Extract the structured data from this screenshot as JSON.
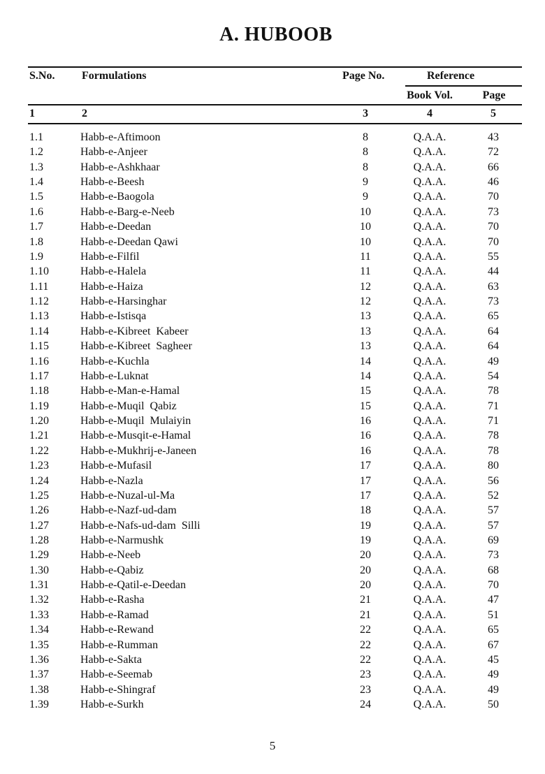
{
  "title": "A.  HUBOOB",
  "header": {
    "sno": "S.No.",
    "formulations": "Formulations",
    "page_no": "Page No.",
    "reference": "Reference",
    "book_vol": "Book Vol.",
    "page": "Page",
    "col_numbers": [
      "1",
      "2",
      "3",
      "4",
      "5"
    ]
  },
  "rows": [
    [
      "1.1",
      "Habb-e-Aftimoon",
      "8",
      "Q.A.A.",
      "43"
    ],
    [
      "1.2",
      "Habb-e-Anjeer",
      "8",
      "Q.A.A.",
      "72"
    ],
    [
      "1.3",
      "Habb-e-Ashkhaar",
      "8",
      "Q.A.A.",
      "66"
    ],
    [
      "1.4",
      "Habb-e-Beesh",
      "9",
      "Q.A.A.",
      "46"
    ],
    [
      "1.5",
      "Habb-e-Baogola",
      "9",
      "Q.A.A.",
      "70"
    ],
    [
      "1.6",
      "Habb-e-Barg-e-Neeb",
      "10",
      "Q.A.A.",
      "73"
    ],
    [
      "1.7",
      "Habb-e-Deedan",
      "10",
      "Q.A.A.",
      "70"
    ],
    [
      "1.8",
      "Habb-e-Deedan Qawi",
      "10",
      "Q.A.A.",
      "70"
    ],
    [
      "1.9",
      "Habb-e-Filfil",
      "11",
      "Q.A.A.",
      "55"
    ],
    [
      "1.10",
      "Habb-e-Halela",
      "11",
      "Q.A.A.",
      "44"
    ],
    [
      "1.11",
      "Habb-e-Haiza",
      "12",
      "Q.A.A.",
      "63"
    ],
    [
      "1.12",
      "Habb-e-Harsinghar",
      "12",
      "Q.A.A.",
      "73"
    ],
    [
      "1.13",
      "Habb-e-Istisqa",
      "13",
      "Q.A.A.",
      "65"
    ],
    [
      "1.14",
      "Habb-e-Kibreet  Kabeer",
      "13",
      "Q.A.A.",
      "64"
    ],
    [
      "1.15",
      "Habb-e-Kibreet  Sagheer",
      "13",
      "Q.A.A.",
      "64"
    ],
    [
      "1.16",
      "Habb-e-Kuchla",
      "14",
      "Q.A.A.",
      "49"
    ],
    [
      "1.17",
      "Habb-e-Luknat",
      "14",
      "Q.A.A.",
      "54"
    ],
    [
      "1.18",
      "Habb-e-Man-e-Hamal",
      "15",
      "Q.A.A.",
      "78"
    ],
    [
      "1.19",
      "Habb-e-Muqil  Qabiz",
      "15",
      "Q.A.A.",
      "71"
    ],
    [
      "1.20",
      "Habb-e-Muqil  Mulaiyin",
      "16",
      "Q.A.A.",
      "71"
    ],
    [
      "1.21",
      "Habb-e-Musqit-e-Hamal",
      "16",
      "Q.A.A.",
      "78"
    ],
    [
      "1.22",
      "Habb-e-Mukhrij-e-Janeen",
      "16",
      "Q.A.A.",
      "78"
    ],
    [
      "1.23",
      "Habb-e-Mufasil",
      "17",
      "Q.A.A.",
      "80"
    ],
    [
      "1.24",
      "Habb-e-Nazla",
      "17",
      "Q.A.A.",
      "56"
    ],
    [
      "1.25",
      "Habb-e-Nuzal-ul-Ma",
      "17",
      "Q.A.A.",
      "52"
    ],
    [
      "1.26",
      "Habb-e-Nazf-ud-dam",
      "18",
      "Q.A.A.",
      "57"
    ],
    [
      "1.27",
      "Habb-e-Nafs-ud-dam  Silli",
      "19",
      "Q.A.A.",
      "57"
    ],
    [
      "1.28",
      "Habb-e-Narmushk",
      "19",
      "Q.A.A.",
      "69"
    ],
    [
      "1.29",
      "Habb-e-Neeb",
      "20",
      "Q.A.A.",
      "73"
    ],
    [
      "1.30",
      "Habb-e-Qabiz",
      "20",
      "Q.A.A.",
      "68"
    ],
    [
      "1.31",
      "Habb-e-Qatil-e-Deedan",
      "20",
      "Q.A.A.",
      "70"
    ],
    [
      "1.32",
      "Habb-e-Rasha",
      "21",
      "Q.A.A.",
      "47"
    ],
    [
      "1.33",
      "Habb-e-Ramad",
      "21",
      "Q.A.A.",
      "51"
    ],
    [
      "1.34",
      "Habb-e-Rewand",
      "22",
      "Q.A.A.",
      "65"
    ],
    [
      "1.35",
      "Habb-e-Rumman",
      "22",
      "Q.A.A.",
      "67"
    ],
    [
      "1.36",
      "Habb-e-Sakta",
      "22",
      "Q.A.A.",
      "45"
    ],
    [
      "1.37",
      "Habb-e-Seemab",
      "23",
      "Q.A.A.",
      "49"
    ],
    [
      "1.38",
      "Habb-e-Shingraf",
      "23",
      "Q.A.A.",
      "49"
    ],
    [
      "1.39",
      "Habb-e-Surkh",
      "24",
      "Q.A.A.",
      "50"
    ]
  ],
  "page_number": "5"
}
